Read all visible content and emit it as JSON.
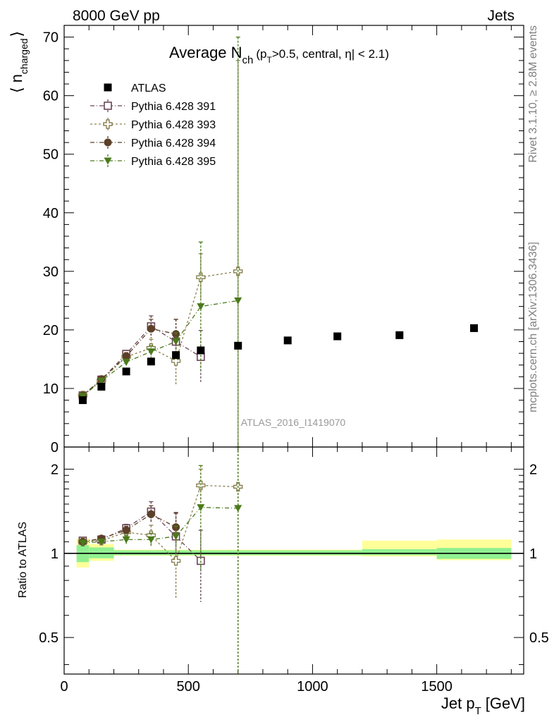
{
  "header": {
    "left": "8000 GeV pp",
    "right": "Jets",
    "side_top": "Rivet 3.1.10, ≥ 2.8M events",
    "side_bottom": "mcplots.cern.ch [arXiv:1306.3436]",
    "watermark": "ATLAS_2016_I1419070"
  },
  "main": {
    "title_main": "Average N",
    "title_sub": "ch",
    "title_tail_1": "(p",
    "title_tail_sub": "T",
    "title_tail_2": ">0.5, central, η| < 2.1)",
    "ylabel_bracket_open": "⟨ n",
    "ylabel_sub": "charged",
    "ylabel_bracket_close": "⟩"
  },
  "ratio": {
    "ylabel": "Ratio to ATLAS"
  },
  "xaxis": {
    "label_main": "Jet p",
    "label_sub": "T",
    "label_unit": "[GeV]"
  },
  "legend": [
    "ATLAS",
    "Pythia 6.428 391",
    "Pythia 6.428 393",
    "Pythia 6.428 394",
    "Pythia 6.428 395"
  ],
  "colors": {
    "data": "#000000",
    "p391": "#6b4556",
    "p393": "#8a8050",
    "p394": "#5c4028",
    "p395": "#4a7a1a",
    "band_inner": "#90f090",
    "band_outer": "#ffff99"
  },
  "chart_data": [
    {
      "type": "scatter",
      "panel": "main",
      "xlim": [
        0,
        1850
      ],
      "ylim": [
        0,
        72
      ],
      "x_ticks": [
        "0",
        "500",
        "1000",
        "1500"
      ],
      "y_ticks": [
        "0",
        "10",
        "20",
        "30",
        "40",
        "50",
        "60",
        "70"
      ],
      "series": [
        {
          "name": "ATLAS",
          "marker": "square-filled",
          "x": [
            75,
            150,
            250,
            350,
            450,
            550,
            700,
            900,
            1100,
            1350,
            1650
          ],
          "y": [
            8.0,
            10.3,
            12.9,
            14.6,
            15.7,
            16.5,
            17.3,
            18.2,
            18.9,
            19.1,
            20.3
          ]
        },
        {
          "name": "Pythia 6.428 391",
          "marker": "square-open",
          "x": [
            75,
            150,
            250,
            350,
            450,
            550
          ],
          "y": [
            8.8,
            11.5,
            15.9,
            20.6,
            18.0,
            15.4
          ],
          "err": [
            0.2,
            0.3,
            0.6,
            1.8,
            3.8,
            4.5
          ]
        },
        {
          "name": "Pythia 6.428 393",
          "marker": "cross-open",
          "x": [
            75,
            150,
            250,
            350,
            450,
            550,
            700
          ],
          "y": [
            8.8,
            11.4,
            15.4,
            16.9,
            14.7,
            29.0,
            30.0
          ],
          "err": [
            0.2,
            0.3,
            0.6,
            1.5,
            4.2,
            4.0,
            36.0
          ]
        },
        {
          "name": "Pythia 6.428 394",
          "marker": "circle-filled",
          "x": [
            75,
            150,
            250,
            350,
            450
          ],
          "y": [
            8.8,
            11.6,
            15.5,
            20.2,
            19.3
          ],
          "err": [
            0.2,
            0.3,
            0.6,
            1.6,
            2.5
          ]
        },
        {
          "name": "Pythia 6.428 395",
          "marker": "triangle-down-filled",
          "x": [
            75,
            150,
            250,
            350,
            450,
            550,
            700
          ],
          "y": [
            8.7,
            11.3,
            14.5,
            16.3,
            18.0,
            24.0,
            25.0
          ],
          "err": [
            0.2,
            0.3,
            0.5,
            1.0,
            1.5,
            11.0,
            45.0
          ]
        }
      ]
    },
    {
      "type": "scatter",
      "panel": "ratio",
      "xlim": [
        0,
        1850
      ],
      "ylim": [
        0.37,
        2.4
      ],
      "y_scale": "log",
      "x_ticks": [
        "0",
        "500",
        "1000",
        "1500"
      ],
      "y_ticks": [
        "0.5",
        "1",
        "2"
      ],
      "reference_band": {
        "bins": [
          [
            50,
            100
          ],
          [
            100,
            200
          ],
          [
            200,
            1200
          ],
          [
            1200,
            1500
          ],
          [
            1500,
            1800
          ]
        ],
        "inner": [
          [
            0.93,
            1.07
          ],
          [
            0.96,
            1.05
          ],
          [
            0.985,
            1.025
          ],
          [
            0.985,
            1.035
          ],
          [
            0.955,
            1.045
          ]
        ],
        "outer": [
          [
            0.89,
            1.13
          ],
          [
            0.94,
            1.08
          ],
          [
            0.98,
            1.03
          ],
          [
            0.975,
            1.11
          ],
          [
            0.945,
            1.12
          ]
        ]
      },
      "series": [
        {
          "name": "Pythia 6.428 391",
          "x": [
            75,
            150,
            250,
            350,
            450,
            550
          ],
          "y": [
            1.11,
            1.12,
            1.23,
            1.41,
            1.15,
            0.94
          ],
          "err": [
            0.02,
            0.02,
            0.04,
            0.12,
            0.24,
            0.27
          ]
        },
        {
          "name": "Pythia 6.428 393",
          "x": [
            75,
            150,
            250,
            350,
            450,
            550,
            700
          ],
          "y": [
            1.1,
            1.11,
            1.19,
            1.16,
            0.94,
            1.75,
            1.73
          ],
          "err": [
            0.02,
            0.02,
            0.04,
            0.1,
            0.25,
            0.25,
            2.0
          ]
        },
        {
          "name": "Pythia 6.428 394",
          "x": [
            75,
            150,
            250,
            350,
            450
          ],
          "y": [
            1.1,
            1.13,
            1.21,
            1.38,
            1.24
          ],
          "err": [
            0.02,
            0.02,
            0.04,
            0.1,
            0.16
          ]
        },
        {
          "name": "Pythia 6.428 395",
          "x": [
            75,
            150,
            250,
            350,
            450,
            550,
            700
          ],
          "y": [
            1.09,
            1.1,
            1.12,
            1.12,
            1.15,
            1.46,
            1.45
          ],
          "err": [
            0.02,
            0.02,
            0.04,
            0.06,
            0.1,
            0.6,
            3.0
          ]
        }
      ]
    }
  ]
}
